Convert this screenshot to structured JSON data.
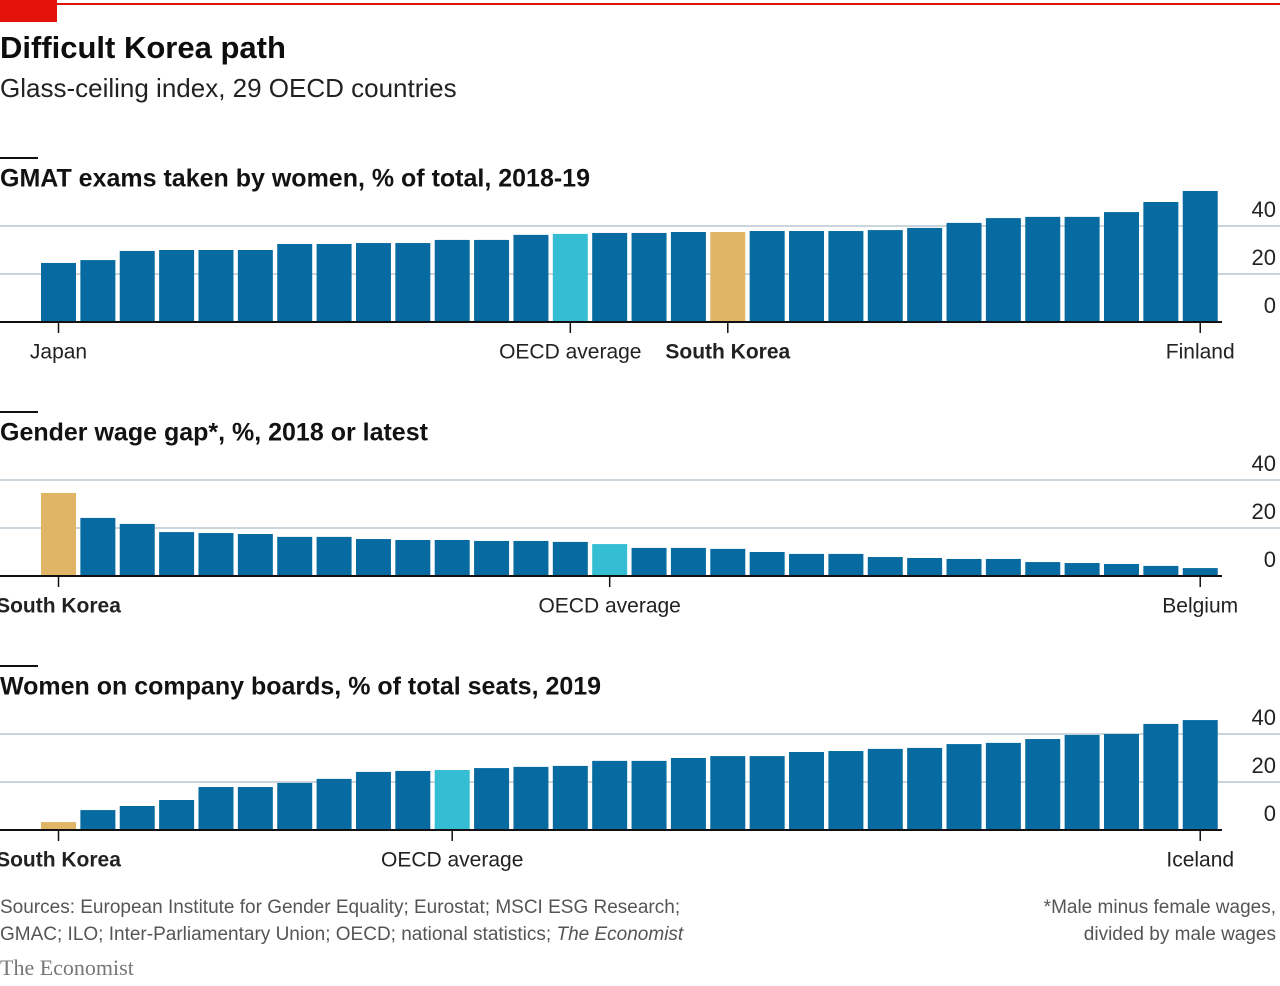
{
  "title": "Difficult Korea path",
  "subtitle": "Glass-ceiling index, 29 OECD countries",
  "chart_data": [
    {
      "type": "bar",
      "title": "GMAT exams taken by women, % of total, 2018-19",
      "categories": [
        "Japan",
        null,
        null,
        null,
        null,
        null,
        null,
        null,
        null,
        null,
        null,
        null,
        null,
        "OECD average",
        null,
        null,
        null,
        "South Korea",
        null,
        null,
        null,
        null,
        null,
        null,
        null,
        null,
        null,
        null,
        null,
        "Finland"
      ],
      "values": [
        24.6,
        25.8,
        29.6,
        30,
        30,
        30,
        32.5,
        32.5,
        32.9,
        32.9,
        34.2,
        34.2,
        36.3,
        36.7,
        37.1,
        37.1,
        37.5,
        37.5,
        37.9,
        37.9,
        37.9,
        38.3,
        39.2,
        41.3,
        43.3,
        43.8,
        43.8,
        45.8,
        50,
        54.6
      ],
      "color": "#076ba1",
      "highlight": {
        "OECD average": "#35bed3",
        "South Korea": "#e0b566"
      },
      "bold_categories": [
        "South Korea"
      ],
      "ylim": [
        0,
        55
      ],
      "yticks": [
        0,
        20,
        40
      ],
      "grid": true
    },
    {
      "type": "bar",
      "title": "Gender wage gap*, %, 2018 or latest",
      "categories": [
        "South Korea",
        null,
        null,
        null,
        null,
        null,
        null,
        null,
        null,
        null,
        null,
        null,
        null,
        null,
        "OECD average",
        null,
        null,
        null,
        null,
        null,
        null,
        null,
        null,
        null,
        null,
        null,
        null,
        null,
        null,
        "Belgium"
      ],
      "values": [
        34.6,
        24.2,
        21.7,
        18.3,
        17.9,
        17.5,
        16.3,
        16.3,
        15.4,
        15,
        15,
        14.6,
        14.6,
        14.2,
        13.3,
        11.7,
        11.7,
        11.3,
        10,
        9.2,
        9.2,
        7.9,
        7.5,
        7.1,
        7.1,
        5.8,
        5.4,
        5,
        4.2,
        3.3
      ],
      "color": "#076ba1",
      "highlight": {
        "OECD average": "#35bed3",
        "South Korea": "#e0b566"
      },
      "bold_categories": [
        "South Korea"
      ],
      "ylim": [
        0,
        47
      ],
      "yticks": [
        0,
        20,
        40
      ],
      "grid": true
    },
    {
      "type": "bar",
      "title": "Women on company boards, % of total seats, 2019",
      "categories": [
        "South Korea",
        null,
        null,
        null,
        null,
        null,
        null,
        null,
        null,
        null,
        "OECD average",
        null,
        null,
        null,
        null,
        null,
        null,
        null,
        null,
        null,
        null,
        null,
        null,
        null,
        null,
        null,
        null,
        null,
        null,
        "Iceland"
      ],
      "values": [
        3.3,
        8.3,
        10,
        12.5,
        17.9,
        17.9,
        19.6,
        21.3,
        24.2,
        24.6,
        25,
        25.8,
        26.3,
        26.7,
        28.8,
        28.8,
        30,
        30.8,
        30.8,
        32.5,
        32.9,
        33.8,
        34.2,
        35.8,
        36.3,
        37.9,
        39.6,
        40,
        44.2,
        45.8
      ],
      "color": "#076ba1",
      "highlight": {
        "OECD average": "#35bed3",
        "South Korea": "#e0b566"
      },
      "bold_categories": [
        "South Korea"
      ],
      "ylim": [
        0,
        47
      ],
      "yticks": [
        0,
        20,
        40
      ],
      "grid": true
    }
  ],
  "footer": {
    "sources": [
      "Sources: European Institute for Gender Equality; Eurostat; MSCI ESG Research;",
      "GMAC; ILO; Inter-Parliamentary Union; OECD; national statistics; "
    ],
    "sources_italic": "The Economist",
    "note": [
      "*Male minus female wages,",
      "divided by male wages"
    ],
    "brand": "The Economist"
  }
}
